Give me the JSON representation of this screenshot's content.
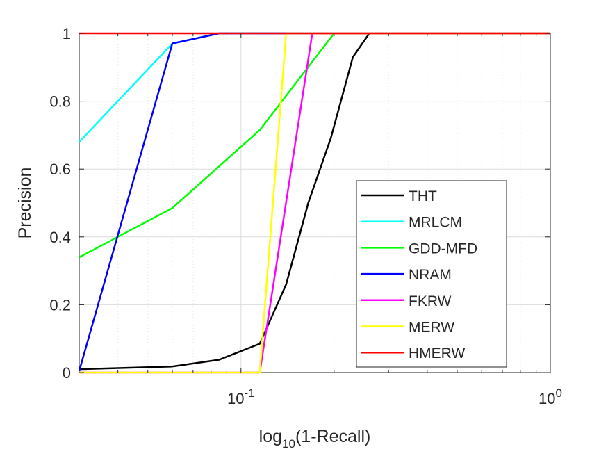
{
  "chart_data": {
    "type": "line",
    "xlabel": {
      "base": "log",
      "sub": "10",
      "rest": "(1-Recall)"
    },
    "ylabel": "Precision",
    "x_scale": "log",
    "xlim": [
      0.03,
      1
    ],
    "ylim": [
      0,
      1
    ],
    "grid": true,
    "legend_position": "lower-right",
    "x_ticks": [
      {
        "value": 0.1,
        "base": "10",
        "exp": "-1"
      },
      {
        "value": 1,
        "base": "10",
        "exp": "0"
      }
    ],
    "y_ticks": [
      {
        "value": 0,
        "label": "0"
      },
      {
        "value": 0.2,
        "label": "0.2"
      },
      {
        "value": 0.4,
        "label": "0.4"
      },
      {
        "value": 0.6,
        "label": "0.6"
      },
      {
        "value": 0.8,
        "label": "0.8"
      },
      {
        "value": 1,
        "label": "1"
      }
    ],
    "series": [
      {
        "name": "THT",
        "color": "#000000",
        "points": [
          [
            0.03,
            0.01
          ],
          [
            0.06,
            0.018
          ],
          [
            0.085,
            0.038
          ],
          [
            0.115,
            0.085
          ],
          [
            0.14,
            0.26
          ],
          [
            0.165,
            0.5
          ],
          [
            0.195,
            0.69
          ],
          [
            0.23,
            0.93
          ],
          [
            0.26,
            1.0
          ],
          [
            1.0,
            1.0
          ]
        ]
      },
      {
        "name": "MRLCM",
        "color": "#00ffff",
        "points": [
          [
            0.03,
            0.68
          ],
          [
            0.06,
            0.97
          ],
          [
            0.085,
            1.0
          ],
          [
            1.0,
            1.0
          ]
        ]
      },
      {
        "name": "GDD-MFD",
        "color": "#00ff00",
        "points": [
          [
            0.03,
            0.34
          ],
          [
            0.06,
            0.485
          ],
          [
            0.115,
            0.715
          ],
          [
            0.2,
            1.0
          ],
          [
            1.0,
            1.0
          ]
        ]
      },
      {
        "name": "NRAM",
        "color": "#0000ff",
        "points": [
          [
            0.03,
            0.005
          ],
          [
            0.06,
            0.97
          ],
          [
            0.085,
            1.0
          ],
          [
            1.0,
            1.0
          ]
        ]
      },
      {
        "name": "FKRW",
        "color": "#ff00ff",
        "points": [
          [
            0.03,
            0.0
          ],
          [
            0.115,
            0.0
          ],
          [
            0.17,
            1.0
          ],
          [
            1.0,
            1.0
          ]
        ]
      },
      {
        "name": "MERW",
        "color": "#ffff00",
        "points": [
          [
            0.03,
            0.0
          ],
          [
            0.115,
            0.0
          ],
          [
            0.14,
            1.0
          ],
          [
            1.0,
            1.0
          ]
        ]
      },
      {
        "name": "HMERW",
        "color": "#ff0000",
        "points": [
          [
            0.03,
            1.0
          ],
          [
            1.0,
            1.0
          ]
        ]
      }
    ]
  }
}
